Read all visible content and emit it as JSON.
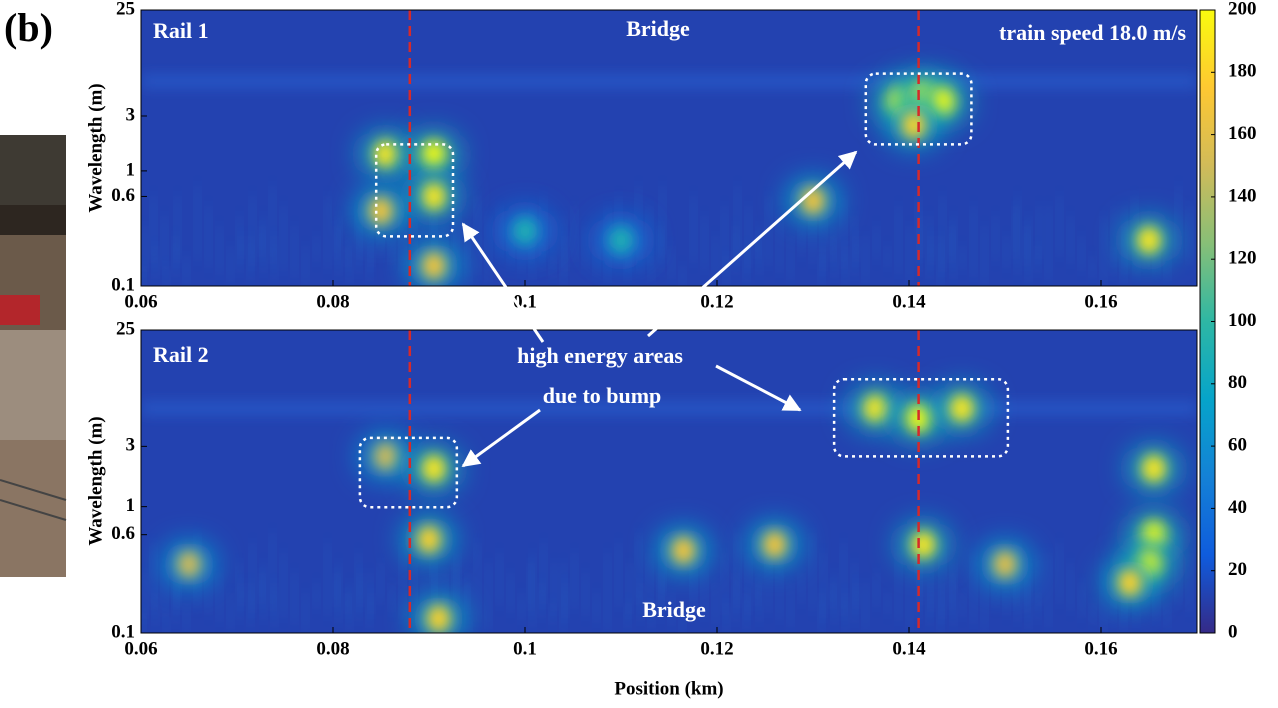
{
  "panel_label": "(b)",
  "annotation": [
    "high energy areas",
    "due to bump"
  ],
  "colorbar": {
    "lim": [
      0,
      200
    ],
    "ticks": [
      0,
      20,
      40,
      60,
      80,
      100,
      120,
      140,
      160,
      180,
      200
    ],
    "colors": [
      "#352a87",
      "#0f5cdd",
      "#1481d6",
      "#06a4ca",
      "#2eb7a4",
      "#87bf77",
      "#d1bb59",
      "#fec832",
      "#f9fb0e"
    ]
  },
  "chart_data": [
    {
      "type": "heatmap",
      "title": "Rail 1",
      "ylabel": "Wavelength (m)",
      "log_y": true,
      "background": 12,
      "annotations": [
        "Bridge",
        "train speed 18.0 m/s"
      ],
      "xlim": [
        0.06,
        0.17
      ],
      "xticks": [
        0.06,
        0.08,
        0.1,
        0.12,
        0.14,
        0.16
      ],
      "ylim": [
        0.1,
        25
      ],
      "yticks": [
        0.1,
        0.6,
        1,
        3,
        25
      ],
      "markers": [
        0.088,
        0.141
      ],
      "boxes": [
        {
          "x": [
            0.0845,
            0.0925
          ],
          "y": [
            0.27,
            1.7
          ]
        },
        {
          "x": [
            0.1355,
            0.1465
          ],
          "y": [
            1.7,
            7
          ]
        }
      ],
      "hotspots": {
        "x": [
          0.0855,
          0.0905,
          0.0905,
          0.085,
          0.139,
          0.1415,
          0.1435,
          0.1405,
          0.165,
          0.13,
          0.0905,
          0.1,
          0.11
        ],
        "y": [
          1.4,
          1.4,
          0.6,
          0.45,
          4,
          4.5,
          4,
          2.5,
          0.25,
          0.55,
          0.15,
          0.3,
          0.25
        ],
        "values": [
          190,
          200,
          190,
          170,
          200,
          200,
          200,
          180,
          190,
          170,
          170,
          90,
          90
        ]
      }
    },
    {
      "type": "heatmap",
      "title": "Rail 2",
      "ylabel": "Wavelength (m)",
      "xlabel": "Position (km)",
      "log_y": true,
      "background": 12,
      "annotations": [
        "Bridge"
      ],
      "xlim": [
        0.06,
        0.17
      ],
      "xticks": [
        0.06,
        0.08,
        0.1,
        0.12,
        0.14,
        0.16
      ],
      "ylim": [
        0.1,
        25
      ],
      "yticks": [
        0.1,
        0.6,
        1,
        3,
        25
      ],
      "markers": [
        0.088,
        0.141
      ],
      "boxes": [
        {
          "x": [
            0.0828,
            0.0929
          ],
          "y": [
            0.99,
            3.5
          ]
        },
        {
          "x": [
            0.1322,
            0.1503
          ],
          "y": [
            2.5,
            10.2
          ]
        }
      ],
      "hotspots": {
        "x": [
          0.0855,
          0.0905,
          0.1365,
          0.141,
          0.1455,
          0.1655,
          0.1655,
          0.165,
          0.09,
          0.1415,
          0.1165,
          0.126,
          0.163,
          0.091,
          0.065,
          0.15
        ],
        "y": [
          2.5,
          2,
          6,
          5,
          6,
          0.6,
          2,
          0.35,
          0.55,
          0.5,
          0.45,
          0.5,
          0.25,
          0.13,
          0.35,
          0.35
        ],
        "values": [
          150,
          190,
          190,
          200,
          190,
          200,
          190,
          200,
          180,
          190,
          170,
          170,
          180,
          180,
          150,
          160
        ]
      }
    }
  ]
}
